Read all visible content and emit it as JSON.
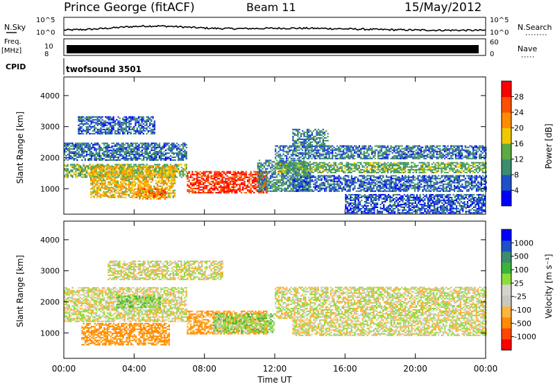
{
  "header": {
    "station": "Prince George (fitACF)",
    "beam": "Beam 11",
    "date": "15/May/2012"
  },
  "top_panels": {
    "nsky_label": "N.Sky",
    "nsky_ticks": [
      "10^5",
      "10^0"
    ],
    "nsearch_label": "N.Search",
    "freq_label_1": "Freq.",
    "freq_label_2": "[MHz]",
    "freq_ticks": [
      "10",
      "8"
    ],
    "nave_label": "Nave",
    "nave_ticks": [
      "60",
      "0"
    ],
    "cpid_label": "CPID",
    "cpid_value": "twofsound 3501"
  },
  "colors": {
    "power_scale": [
      "#0000ff",
      "#1e50c8",
      "#3c8c6e",
      "#5aaa46",
      "#f0c800",
      "#ff8c00",
      "#ff5000",
      "#ff0000"
    ],
    "velocity_scale": [
      "#ff0000",
      "#ff4600",
      "#ff8c00",
      "#ffb43c",
      "#c8c8be",
      "#d4d4cc",
      "#8cdc3c",
      "#3cb43c",
      "#3c8c6e",
      "#1e50c8",
      "#0000ff"
    ]
  },
  "chart_data": [
    {
      "type": "heatmap",
      "panel": "power",
      "ylabel": "Slant Range [km]",
      "ylim": [
        180,
        4600
      ],
      "yticks": [
        "4000",
        "3000",
        "2000",
        "1000"
      ],
      "xlim": [
        0,
        24
      ],
      "colorbar_label": "Power [dB]",
      "colorbar_ticks": [
        "28",
        "24",
        "20",
        "16",
        "12",
        "8",
        "4"
      ],
      "colorbar_range": [
        0,
        32
      ],
      "bands": [
        {
          "t0": 0.0,
          "t1": 7.0,
          "r0": 1350,
          "r1": 1800,
          "v": 14
        },
        {
          "t0": 0.0,
          "t1": 7.0,
          "r0": 1900,
          "r1": 2450,
          "v": 8
        },
        {
          "t0": 0.8,
          "t1": 5.2,
          "r0": 2750,
          "r1": 3300,
          "v": 7
        },
        {
          "t0": 1.5,
          "t1": 6.3,
          "r0": 700,
          "r1": 1700,
          "v": 19
        },
        {
          "t0": 4.0,
          "t1": 5.8,
          "r0": 650,
          "r1": 1000,
          "v": 24
        },
        {
          "t0": 7.0,
          "t1": 11.5,
          "r0": 850,
          "r1": 1550,
          "v": 28
        },
        {
          "t0": 11.0,
          "t1": 14.0,
          "r0": 900,
          "r1": 1900,
          "v": 10
        },
        {
          "t0": 12.0,
          "t1": 24.0,
          "r0": 1500,
          "r1": 1850,
          "v": 13
        },
        {
          "t0": 12.0,
          "t1": 24.0,
          "r0": 1950,
          "r1": 2400,
          "v": 8
        },
        {
          "t0": 13.0,
          "t1": 24.0,
          "r0": 900,
          "r1": 1400,
          "v": 7
        },
        {
          "t0": 13.0,
          "t1": 15.0,
          "r0": 2300,
          "r1": 2900,
          "v": 9
        },
        {
          "t0": 16.0,
          "t1": 24.0,
          "r0": 200,
          "r1": 800,
          "v": 6
        }
      ]
    },
    {
      "type": "heatmap",
      "panel": "velocity",
      "ylabel": "Slant Range [km]",
      "ylim": [
        180,
        4600
      ],
      "yticks": [
        "4000",
        "3000",
        "2000",
        "1000"
      ],
      "xlim": [
        0,
        24
      ],
      "xticks": [
        "00:00",
        "04:00",
        "08:00",
        "12:00",
        "16:00",
        "20:00",
        "00:00"
      ],
      "xlabel": "Time UT",
      "colorbar_label": "Velocity [m s⁻¹]",
      "colorbar_ticks": [
        "1000",
        "500",
        "100",
        "25",
        "-25",
        "-100",
        "-500",
        "-1000"
      ],
      "bands": [
        {
          "t0": 0.0,
          "t1": 7.0,
          "r0": 1350,
          "r1": 2450,
          "v": 0
        },
        {
          "t0": 1.0,
          "t1": 6.0,
          "r0": 600,
          "r1": 1300,
          "v": -150
        },
        {
          "t0": 3.0,
          "t1": 5.5,
          "r0": 1800,
          "r1": 2200,
          "v": 80
        },
        {
          "t0": 7.0,
          "t1": 11.5,
          "r0": 950,
          "r1": 1700,
          "v": -120
        },
        {
          "t0": 8.5,
          "t1": 12.0,
          "r0": 1000,
          "r1": 1600,
          "v": 60
        },
        {
          "t0": 12.0,
          "t1": 24.0,
          "r0": 1450,
          "r1": 2450,
          "v": 0
        },
        {
          "t0": 13.0,
          "t1": 24.0,
          "r0": 900,
          "r1": 1400,
          "v": 0
        },
        {
          "t0": 2.5,
          "t1": 9.0,
          "r0": 2700,
          "r1": 3300,
          "v": 0
        }
      ]
    }
  ]
}
